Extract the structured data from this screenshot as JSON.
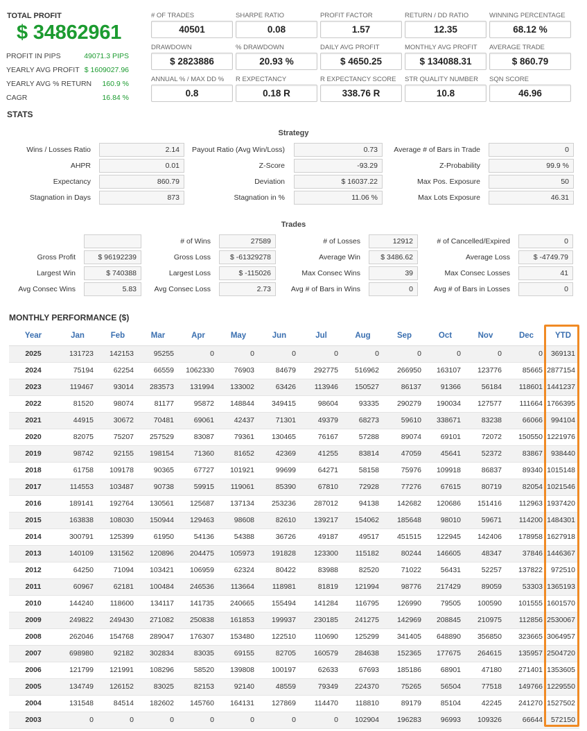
{
  "summary": {
    "total_profit_label": "TOTAL PROFIT",
    "total_profit_value": "$ 34862961",
    "side": [
      {
        "label": "PROFIT IN PIPS",
        "value": "49071.3 PIPS"
      },
      {
        "label": "YEARLY AVG PROFIT",
        "value": "$ 1609027.96"
      },
      {
        "label": "YEARLY AVG % RETURN",
        "value": "160.9 %"
      },
      {
        "label": "CAGR",
        "value": "16.84 %"
      }
    ],
    "metrics": [
      {
        "label": "# OF TRADES",
        "value": "40501"
      },
      {
        "label": "SHARPE RATIO",
        "value": "0.08"
      },
      {
        "label": "PROFIT FACTOR",
        "value": "1.57"
      },
      {
        "label": "RETURN / DD RATIO",
        "value": "12.35"
      },
      {
        "label": "WINNING PERCENTAGE",
        "value": "68.12 %"
      },
      {
        "label": "DRAWDOWN",
        "value": "$ 2823886"
      },
      {
        "label": "% DRAWDOWN",
        "value": "20.93 %"
      },
      {
        "label": "DAILY AVG PROFIT",
        "value": "$ 4650.25"
      },
      {
        "label": "MONTHLY AVG PROFIT",
        "value": "$ 134088.31"
      },
      {
        "label": "AVERAGE TRADE",
        "value": "$ 860.79"
      },
      {
        "label": "ANNUAL % / MAX DD %",
        "value": "0.8"
      },
      {
        "label": "R EXPECTANCY",
        "value": "0.18 R"
      },
      {
        "label": "R EXPECTANCY SCORE",
        "value": "338.76 R"
      },
      {
        "label": "STR QUALITY NUMBER",
        "value": "10.8"
      },
      {
        "label": "SQN SCORE",
        "value": "46.96"
      }
    ]
  },
  "stats_title": "STATS",
  "strategy": {
    "title": "Strategy",
    "rows": [
      [
        {
          "label": "Wins / Losses Ratio",
          "value": "2.14"
        },
        {
          "label": "Payout Ratio (Avg Win/Loss)",
          "value": "0.73"
        },
        {
          "label": "Average # of Bars in Trade",
          "value": "0"
        }
      ],
      [
        {
          "label": "AHPR",
          "value": "0.01"
        },
        {
          "label": "Z-Score",
          "value": "-93.29"
        },
        {
          "label": "Z-Probability",
          "value": "99.9 %"
        }
      ],
      [
        {
          "label": "Expectancy",
          "value": "860.79"
        },
        {
          "label": "Deviation",
          "value": "$ 16037.22"
        },
        {
          "label": "Max Pos. Exposure",
          "value": "50"
        }
      ],
      [
        {
          "label": "Stagnation in Days",
          "value": "873"
        },
        {
          "label": "Stagnation in %",
          "value": "11.06 %"
        },
        {
          "label": "Max Lots Exposure",
          "value": "46.31"
        }
      ]
    ]
  },
  "trades": {
    "title": "Trades",
    "rows": [
      [
        {
          "label": "",
          "value": ""
        },
        {
          "label": "# of Wins",
          "value": "27589"
        },
        {
          "label": "# of Losses",
          "value": "12912"
        },
        {
          "label": "# of Cancelled/Expired",
          "value": "0"
        }
      ],
      [
        {
          "label": "Gross Profit",
          "value": "$ 96192239"
        },
        {
          "label": "Gross Loss",
          "value": "$ -61329278"
        },
        {
          "label": "Average Win",
          "value": "$ 3486.62"
        },
        {
          "label": "Average Loss",
          "value": "$ -4749.79"
        }
      ],
      [
        {
          "label": "Largest Win",
          "value": "$ 740388"
        },
        {
          "label": "Largest Loss",
          "value": "$ -115026"
        },
        {
          "label": "Max Consec Wins",
          "value": "39"
        },
        {
          "label": "Max Consec Losses",
          "value": "41"
        }
      ],
      [
        {
          "label": "Avg Consec Wins",
          "value": "5.83"
        },
        {
          "label": "Avg Consec Loss",
          "value": "2.73"
        },
        {
          "label": "Avg # of Bars in Wins",
          "value": "0"
        },
        {
          "label": "Avg # of Bars in Losses",
          "value": "0"
        }
      ]
    ]
  },
  "monthly": {
    "title": "MONTHLY PERFORMANCE ($)",
    "headers": [
      "Year",
      "Jan",
      "Feb",
      "Mar",
      "Apr",
      "May",
      "Jun",
      "Jul",
      "Aug",
      "Sep",
      "Oct",
      "Nov",
      "Dec",
      "YTD"
    ],
    "rows": [
      [
        "2025",
        "131723",
        "142153",
        "95255",
        "0",
        "0",
        "0",
        "0",
        "0",
        "0",
        "0",
        "0",
        "0",
        "369131"
      ],
      [
        "2024",
        "75194",
        "62254",
        "66559",
        "1062330",
        "76903",
        "84679",
        "292775",
        "516962",
        "266950",
        "163107",
        "123776",
        "85665",
        "2877154"
      ],
      [
        "2023",
        "119467",
        "93014",
        "283573",
        "131994",
        "133002",
        "63426",
        "113946",
        "150527",
        "86137",
        "91366",
        "56184",
        "118601",
        "1441237"
      ],
      [
        "2022",
        "81520",
        "98074",
        "81177",
        "95872",
        "148844",
        "349415",
        "98604",
        "93335",
        "290279",
        "190034",
        "127577",
        "111664",
        "1766395"
      ],
      [
        "2021",
        "44915",
        "30672",
        "70481",
        "69061",
        "42437",
        "71301",
        "49379",
        "68273",
        "59610",
        "338671",
        "83238",
        "66066",
        "994104"
      ],
      [
        "2020",
        "82075",
        "75207",
        "257529",
        "83087",
        "79361",
        "130465",
        "76167",
        "57288",
        "89074",
        "69101",
        "72072",
        "150550",
        "1221976"
      ],
      [
        "2019",
        "98742",
        "92155",
        "198154",
        "71360",
        "81652",
        "42369",
        "41255",
        "83814",
        "47059",
        "45641",
        "52372",
        "83867",
        "938440"
      ],
      [
        "2018",
        "61758",
        "109178",
        "90365",
        "67727",
        "101921",
        "99699",
        "64271",
        "58158",
        "75976",
        "109918",
        "86837",
        "89340",
        "1015148"
      ],
      [
        "2017",
        "114553",
        "103487",
        "90738",
        "59915",
        "119061",
        "85390",
        "67810",
        "72928",
        "77276",
        "67615",
        "80719",
        "82054",
        "1021546"
      ],
      [
        "2016",
        "189141",
        "192764",
        "130561",
        "125687",
        "137134",
        "253236",
        "287012",
        "94138",
        "142682",
        "120686",
        "151416",
        "112963",
        "1937420"
      ],
      [
        "2015",
        "163838",
        "108030",
        "150944",
        "129463",
        "98608",
        "82610",
        "139217",
        "154062",
        "185648",
        "98010",
        "59671",
        "114200",
        "1484301"
      ],
      [
        "2014",
        "300791",
        "125399",
        "61950",
        "54136",
        "54388",
        "36726",
        "49187",
        "49517",
        "451515",
        "122945",
        "142406",
        "178958",
        "1627918"
      ],
      [
        "2013",
        "140109",
        "131562",
        "120896",
        "204475",
        "105973",
        "191828",
        "123300",
        "115182",
        "80244",
        "146605",
        "48347",
        "37846",
        "1446367"
      ],
      [
        "2012",
        "64250",
        "71094",
        "103421",
        "106959",
        "62324",
        "80422",
        "83988",
        "82520",
        "71022",
        "56431",
        "52257",
        "137822",
        "972510"
      ],
      [
        "2011",
        "60967",
        "62181",
        "100484",
        "246536",
        "113664",
        "118981",
        "81819",
        "121994",
        "98776",
        "217429",
        "89059",
        "53303",
        "1365193"
      ],
      [
        "2010",
        "144240",
        "118600",
        "134117",
        "141735",
        "240665",
        "155494",
        "141284",
        "116795",
        "126990",
        "79505",
        "100590",
        "101555",
        "1601570"
      ],
      [
        "2009",
        "249822",
        "249430",
        "271082",
        "250838",
        "161853",
        "199937",
        "230185",
        "241275",
        "142969",
        "208845",
        "210975",
        "112856",
        "2530067"
      ],
      [
        "2008",
        "262046",
        "154768",
        "289047",
        "176307",
        "153480",
        "122510",
        "110690",
        "125299",
        "341405",
        "648890",
        "356850",
        "323665",
        "3064957"
      ],
      [
        "2007",
        "698980",
        "92182",
        "302834",
        "83035",
        "69155",
        "82705",
        "160579",
        "284638",
        "152365",
        "177675",
        "264615",
        "135957",
        "2504720"
      ],
      [
        "2006",
        "121799",
        "121991",
        "108296",
        "58520",
        "139808",
        "100197",
        "62633",
        "67693",
        "185186",
        "68901",
        "47180",
        "271401",
        "1353605"
      ],
      [
        "2005",
        "134749",
        "126152",
        "83025",
        "82153",
        "92140",
        "48559",
        "79349",
        "224370",
        "75265",
        "56504",
        "77518",
        "149766",
        "1229550"
      ],
      [
        "2004",
        "131548",
        "84514",
        "182602",
        "145760",
        "164131",
        "127869",
        "114470",
        "118810",
        "89179",
        "85104",
        "42245",
        "241270",
        "1527502"
      ],
      [
        "2003",
        "0",
        "0",
        "0",
        "0",
        "0",
        "0",
        "0",
        "102904",
        "196283",
        "96993",
        "109326",
        "66644",
        "572150"
      ]
    ]
  }
}
